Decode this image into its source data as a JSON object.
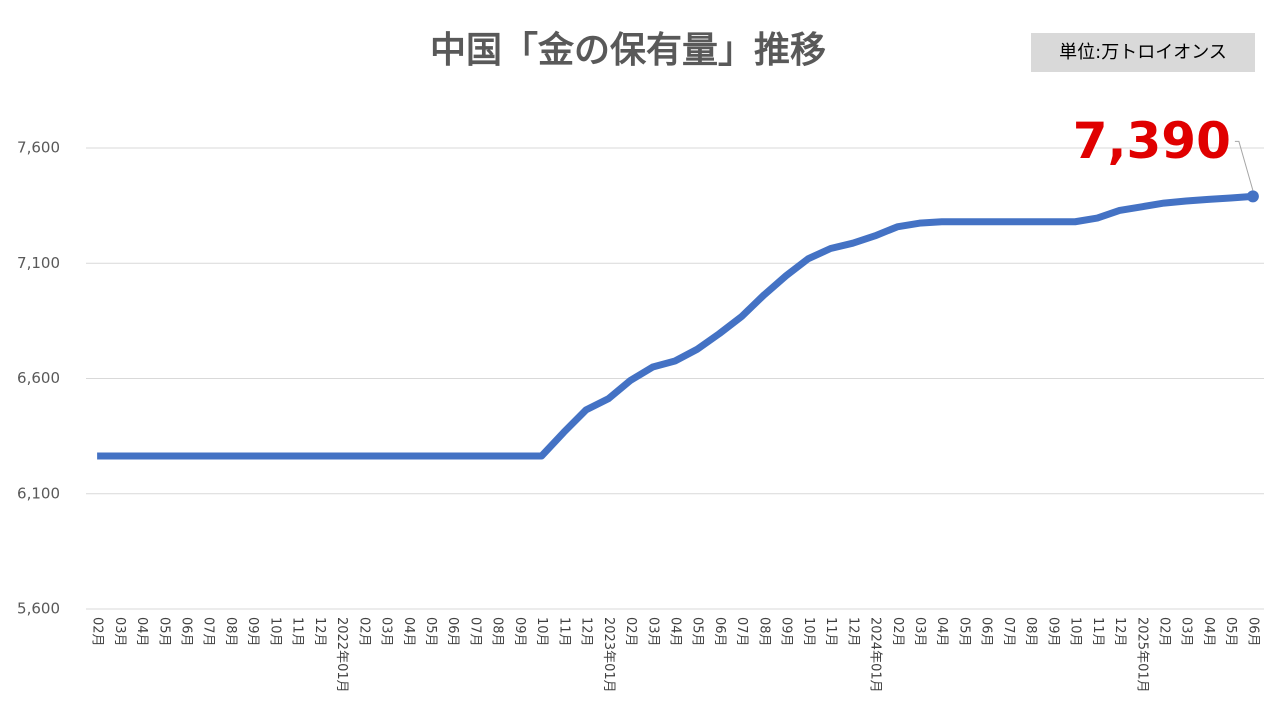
{
  "chart_data": {
    "type": "line",
    "title": "中国「金の保有量」推移",
    "unit_label": "単位:万トロイオンス",
    "categories": [
      "02月",
      "03月",
      "04月",
      "05月",
      "06月",
      "07月",
      "08月",
      "09月",
      "10月",
      "11月",
      "12月",
      "2022年01月",
      "02月",
      "03月",
      "04月",
      "05月",
      "06月",
      "07月",
      "08月",
      "09月",
      "10月",
      "11月",
      "12月",
      "2023年01月",
      "02月",
      "03月",
      "04月",
      "05月",
      "06月",
      "07月",
      "08月",
      "09月",
      "10月",
      "11月",
      "12月",
      "2024年01月",
      "02月",
      "03月",
      "04月",
      "05月",
      "06月",
      "07月",
      "08月",
      "09月",
      "10月",
      "11月",
      "12月",
      "2025年01月",
      "02月",
      "03月",
      "04月",
      "05月",
      "06月"
    ],
    "series": [
      {
        "name": "金の保有量",
        "color": "#4472c4",
        "values": [
          6264,
          6264,
          6264,
          6264,
          6264,
          6264,
          6264,
          6264,
          6264,
          6264,
          6264,
          6264,
          6264,
          6264,
          6264,
          6264,
          6264,
          6264,
          6264,
          6264,
          6264,
          6367,
          6464,
          6512,
          6592,
          6650,
          6676,
          6727,
          6795,
          6869,
          6962,
          7046,
          7120,
          7164,
          7187,
          7219,
          7258,
          7274,
          7280,
          7280,
          7280,
          7280,
          7280,
          7280,
          7280,
          7296,
          7329,
          7345,
          7361,
          7370,
          7377,
          7383,
          7390
        ],
        "value_labels": [
          null,
          null,
          null,
          null,
          null,
          null,
          null,
          null,
          null,
          null,
          null,
          null,
          null,
          null,
          null,
          null,
          null,
          null,
          null,
          null,
          null,
          null,
          null,
          null,
          null,
          null,
          null,
          null,
          null,
          null,
          null,
          null,
          null,
          null,
          null,
          null,
          null,
          null,
          null,
          null,
          null,
          null,
          null,
          null,
          null,
          null,
          null,
          null,
          null,
          null,
          null,
          null,
          "7,390"
        ]
      }
    ],
    "ylim": [
      5600,
      7600
    ],
    "yticks": [
      {
        "value": 5600,
        "label": "5,600"
      },
      {
        "value": 6100,
        "label": "6,100"
      },
      {
        "value": 6600,
        "label": "6,600"
      },
      {
        "value": 7100,
        "label": "7,100"
      },
      {
        "value": 7600,
        "label": "7,600"
      }
    ],
    "grid": true,
    "label_color": "#e00000"
  }
}
